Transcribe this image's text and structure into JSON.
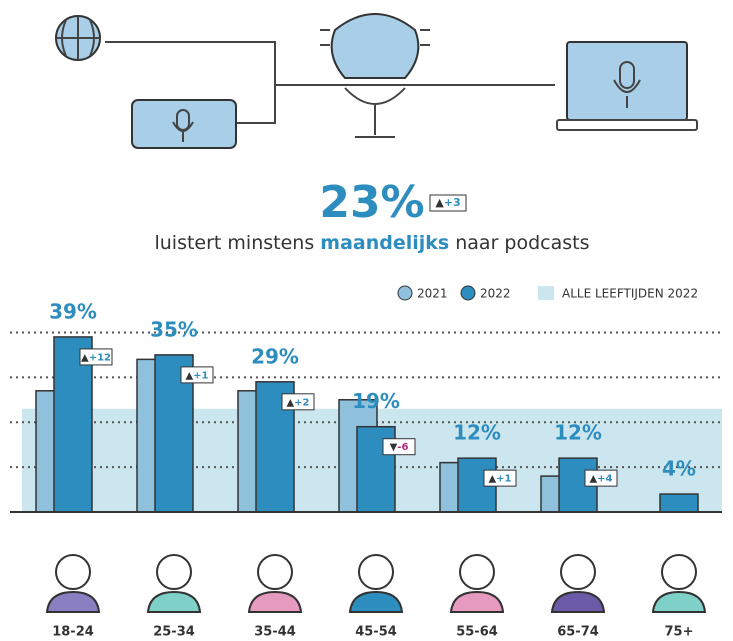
{
  "headline": "23%",
  "headline_change": "+3",
  "subtitle": [
    "luistert minstens ",
    "maandelijks",
    " naar podcasts"
  ],
  "chart_data": {
    "type": "bar",
    "categories": [
      "18-24",
      "25-34",
      "35-44",
      "45-54",
      "55-64",
      "65-74",
      "75+"
    ],
    "series": [
      {
        "name": "2021",
        "color": "#8fc1dd",
        "values": [
          27,
          34,
          27,
          25,
          11,
          8,
          null
        ]
      },
      {
        "name": "2022",
        "color": "#2e8dbf",
        "values": [
          39,
          35,
          29,
          19,
          12,
          12,
          4
        ],
        "value_labels": [
          "39%",
          "35%",
          "29%",
          "19%",
          "12%",
          "12%",
          "4%"
        ],
        "change_labels": [
          "+12",
          "+1",
          "+2",
          "-6",
          "+1",
          "+4",
          null
        ]
      }
    ],
    "band": {
      "name": "ALLE LEEFTIJDEN 2022",
      "value": 23,
      "color": "#cce6ef"
    },
    "ylim": [
      0,
      45
    ],
    "yticks": [
      10,
      20,
      30,
      40
    ],
    "grid": true
  }
}
